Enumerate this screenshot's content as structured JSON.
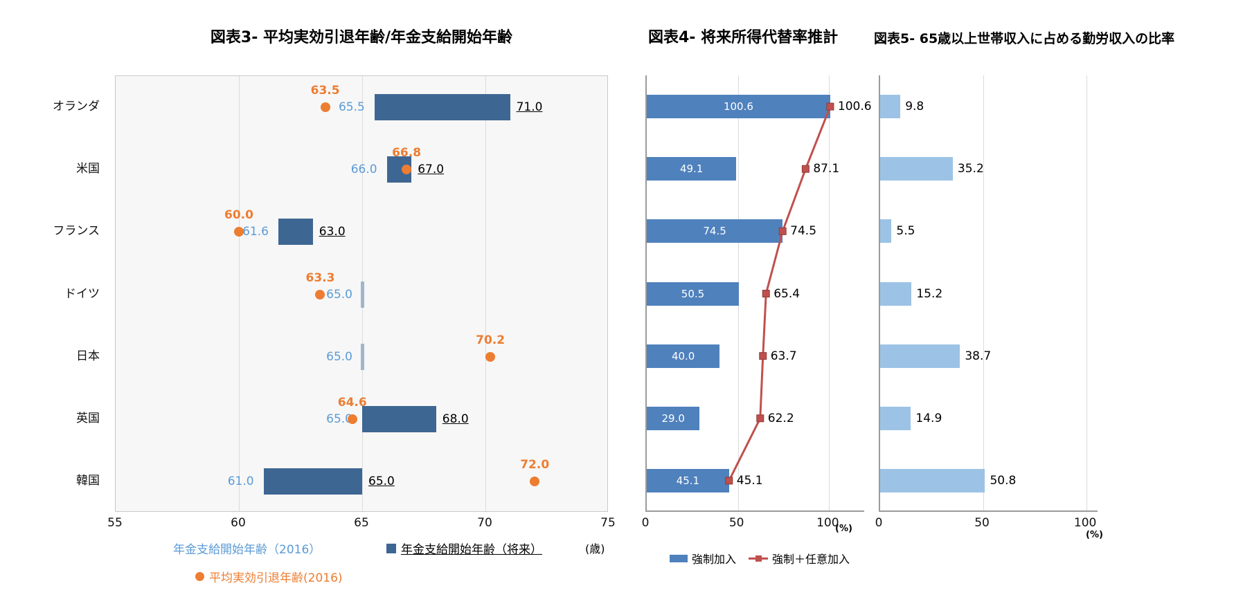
{
  "colors": {
    "dark_blue_bar": "#3E6693",
    "equal_bar": "#9FB6CC",
    "light_blue_text": "#5B9BD5",
    "orange": "#ED7D31",
    "mid_blue_bar": "#4F81BD",
    "red_line": "#C0504D",
    "light_blue_bar": "#9CC3E5",
    "gridline": "#DBDBDB",
    "axis_line": "#9A9A9A",
    "plot_bg": "#F7F7F7",
    "black": "#000000"
  },
  "chart_data": [
    {
      "id": "chart3",
      "type": "bar",
      "title": "図表3- 平均実効引退年齢/年金支給開始年齢",
      "categories": [
        "オランダ",
        "米国",
        "フランス",
        "ドイツ",
        "日本",
        "英国",
        "韓国"
      ],
      "xlim": [
        55,
        75
      ],
      "xticks": [
        55,
        60,
        65,
        70,
        75
      ],
      "axis_unit": "(歳)",
      "legend_position": "bottom",
      "series": [
        {
          "name": "年金支給開始年齢（2016）",
          "marker": "bar-start",
          "values": [
            65.5,
            66.0,
            61.6,
            65.0,
            65.0,
            65.0,
            61.0
          ]
        },
        {
          "name": "年金支給開始年齢（将来）",
          "marker": "bar-end",
          "values": [
            71.0,
            67.0,
            63.0,
            65.0,
            65.0,
            68.0,
            65.0
          ]
        },
        {
          "name": "平均実効引退年齢(2016)",
          "marker": "dot",
          "values": [
            63.5,
            66.8,
            60.0,
            63.3,
            70.2,
            64.6,
            72.0
          ]
        }
      ],
      "start_labels": [
        "65.5",
        "66.0",
        "61.6",
        "65.0",
        "65.0",
        "65.0",
        "61.0"
      ],
      "end_labels": [
        "71.0",
        "67.0",
        "63.0",
        "",
        "",
        "68.0",
        "65.0"
      ],
      "point_labels": [
        "63.5",
        "66.8",
        "60.0",
        "63.3",
        "70.2",
        "64.6",
        "72.0"
      ]
    },
    {
      "id": "chart4",
      "type": "bar",
      "title": "図表4- 将来所得代替率推計",
      "categories": [
        "オランダ",
        "米国",
        "フランス",
        "ドイツ",
        "日本",
        "英国",
        "韓国"
      ],
      "xlim": [
        0,
        120
      ],
      "xticks": [
        0,
        50,
        100
      ],
      "axis_unit": "(%)",
      "legend_position": "bottom",
      "series": [
        {
          "name": "強制加入",
          "marker": "bar",
          "values": [
            100.6,
            49.1,
            74.5,
            50.5,
            40.0,
            29.0,
            45.1
          ]
        },
        {
          "name": "強制＋任意加入",
          "marker": "line",
          "values": [
            100.6,
            87.1,
            74.5,
            65.4,
            63.7,
            62.2,
            45.1
          ]
        }
      ]
    },
    {
      "id": "chart5",
      "type": "bar",
      "title": "図表5- 65歳以上世帯収入に占める勤労収入の比率",
      "categories": [
        "オランダ",
        "米国",
        "フランス",
        "ドイツ",
        "日本",
        "英国",
        "韓国"
      ],
      "xlim": [
        0,
        106
      ],
      "xticks": [
        0,
        50,
        100
      ],
      "axis_unit": "(%)",
      "values": [
        9.8,
        35.2,
        5.5,
        15.2,
        38.7,
        14.9,
        50.8
      ]
    }
  ]
}
